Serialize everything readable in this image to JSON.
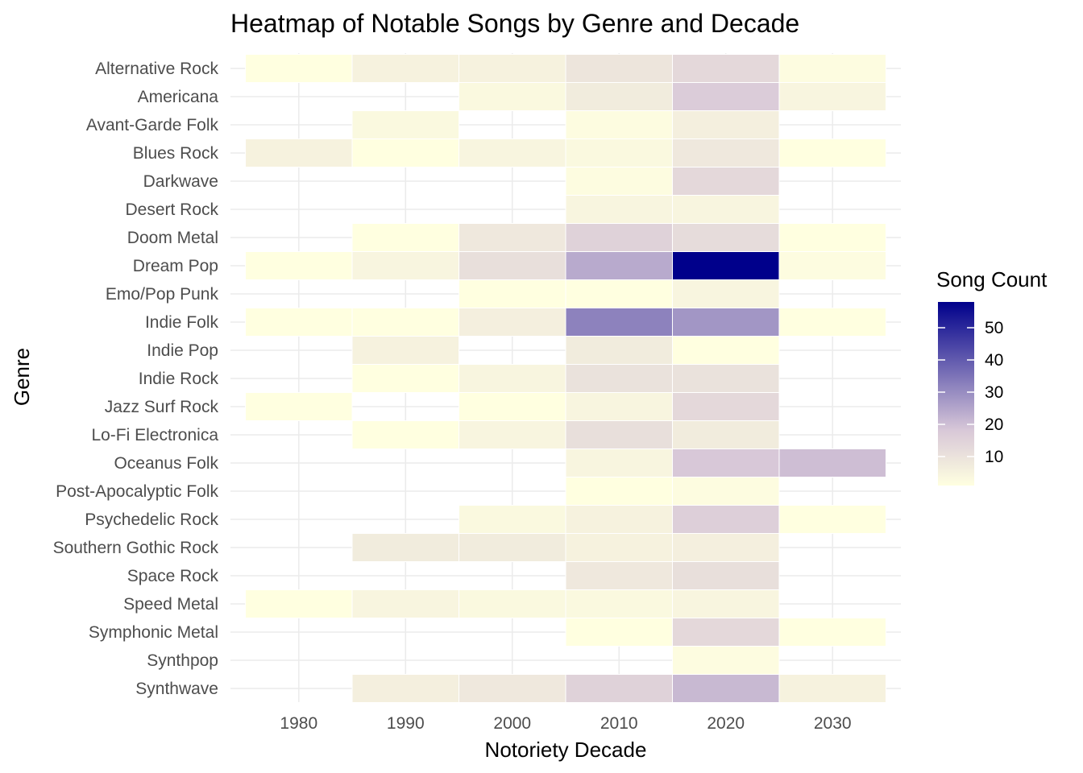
{
  "chart_data": {
    "type": "heatmap",
    "title": "Heatmap of Notable Songs by Genre and Decade",
    "xlabel": "Notoriety Decade",
    "ylabel": "Genre",
    "x": [
      1980,
      1990,
      2000,
      2010,
      2020,
      2030
    ],
    "x_ticks": [
      "1980",
      "1990",
      "2000",
      "2010",
      "2020",
      "2030"
    ],
    "xlim": [
      1975,
      1985,
      1995,
      2005,
      2015,
      2025,
      2035
    ],
    "y": [
      "Alternative Rock",
      "Americana",
      "Avant-Garde Folk",
      "Blues Rock",
      "Darkwave",
      "Desert Rock",
      "Doom Metal",
      "Dream Pop",
      "Emo/Pop Punk",
      "Indie Folk",
      "Indie Pop",
      "Indie Rock",
      "Jazz Surf Rock",
      "Lo-Fi Electronica",
      "Oceanus Folk",
      "Post-Apocalyptic Folk",
      "Psychedelic Rock",
      "Southern Gothic Rock",
      "Space Rock",
      "Speed Metal",
      "Symphonic Metal",
      "Synthpop",
      "Synthwave"
    ],
    "values": [
      [
        1,
        5,
        5,
        9,
        13,
        2
      ],
      [
        null,
        null,
        3,
        7,
        17,
        4
      ],
      [
        null,
        3,
        null,
        2,
        6,
        null
      ],
      [
        5,
        1,
        4,
        3,
        8,
        1
      ],
      [
        null,
        null,
        null,
        2,
        13,
        null
      ],
      [
        null,
        null,
        null,
        4,
        4,
        null
      ],
      [
        null,
        1,
        8,
        15,
        12,
        1
      ],
      [
        1,
        4,
        11,
        24,
        58,
        2
      ],
      [
        null,
        null,
        1,
        1,
        4,
        null
      ],
      [
        1,
        1,
        6,
        32,
        28,
        1
      ],
      [
        null,
        5,
        null,
        7,
        1,
        null
      ],
      [
        null,
        1,
        4,
        10,
        10,
        null
      ],
      [
        1,
        null,
        1,
        4,
        13,
        null
      ],
      [
        null,
        1,
        4,
        11,
        7,
        null
      ],
      [
        null,
        null,
        null,
        4,
        18,
        20
      ],
      [
        null,
        null,
        null,
        1,
        2,
        null
      ],
      [
        null,
        null,
        3,
        5,
        16,
        1
      ],
      [
        null,
        7,
        7,
        5,
        6,
        null
      ],
      [
        null,
        null,
        null,
        8,
        11,
        null
      ],
      [
        1,
        4,
        3,
        3,
        4,
        null
      ],
      [
        null,
        null,
        null,
        1,
        13,
        1
      ],
      [
        null,
        null,
        null,
        null,
        2,
        null
      ],
      [
        null,
        6,
        8,
        15,
        21,
        5
      ]
    ],
    "legend": {
      "title": "Song Count",
      "ticks": [
        10,
        20,
        30,
        40,
        50
      ],
      "tick_labels": [
        "10",
        "20",
        "30",
        "40",
        "50"
      ],
      "min": 1,
      "max": 58,
      "low_color": "#ffffe0",
      "mid_color": "#d8c8d8",
      "high_color": "#00008b",
      "placement": "right"
    },
    "grid": true
  }
}
